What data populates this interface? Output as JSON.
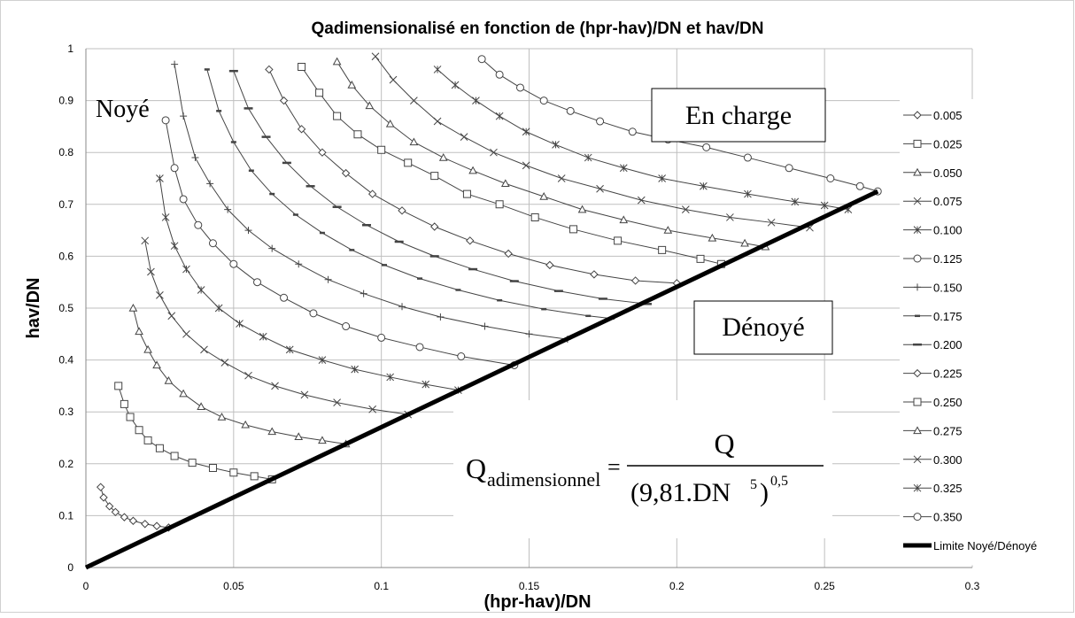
{
  "chart_data": {
    "type": "line",
    "title": "Qadimensionalisé en fonction de (hpr-hav)/DN et hav/DN",
    "xlabel": "(hpr-hav)/DN",
    "ylabel": "hav/DN",
    "xlim": [
      0,
      0.3
    ],
    "ylim": [
      0,
      1
    ],
    "xticks": [
      0,
      0.05,
      0.1,
      0.15,
      0.2,
      0.25,
      0.3
    ],
    "yticks": [
      0,
      0.1,
      0.2,
      0.3,
      0.4,
      0.5,
      0.6,
      0.7,
      0.8,
      0.9,
      1
    ],
    "grid": true,
    "legend": "right",
    "series": [
      {
        "name": "0.005",
        "color": "#444444",
        "marker": "diamond",
        "x": [
          0.005,
          0.006,
          0.008,
          0.01,
          0.013,
          0.016,
          0.02,
          0.024,
          0.028
        ],
        "values": [
          0.155,
          0.135,
          0.118,
          0.107,
          0.097,
          0.09,
          0.084,
          0.08,
          0.077
        ]
      },
      {
        "name": "0.025",
        "color": "#444444",
        "marker": "square",
        "x": [
          0.011,
          0.013,
          0.015,
          0.018,
          0.021,
          0.025,
          0.03,
          0.036,
          0.043,
          0.05,
          0.057,
          0.063
        ],
        "values": [
          0.35,
          0.315,
          0.29,
          0.265,
          0.245,
          0.23,
          0.215,
          0.202,
          0.192,
          0.183,
          0.176,
          0.17
        ]
      },
      {
        "name": "0.050",
        "color": "#444444",
        "marker": "triangle",
        "x": [
          0.016,
          0.018,
          0.021,
          0.024,
          0.028,
          0.033,
          0.039,
          0.046,
          0.054,
          0.063,
          0.072,
          0.08,
          0.088
        ],
        "values": [
          0.5,
          0.455,
          0.42,
          0.39,
          0.36,
          0.335,
          0.31,
          0.29,
          0.275,
          0.262,
          0.252,
          0.245,
          0.238
        ]
      },
      {
        "name": "0.075",
        "color": "#444444",
        "marker": "x",
        "x": [
          0.02,
          0.022,
          0.025,
          0.029,
          0.034,
          0.04,
          0.047,
          0.055,
          0.064,
          0.074,
          0.085,
          0.097,
          0.109
        ],
        "values": [
          0.63,
          0.57,
          0.525,
          0.485,
          0.45,
          0.42,
          0.395,
          0.37,
          0.35,
          0.333,
          0.318,
          0.305,
          0.295
        ]
      },
      {
        "name": "0.100",
        "color": "#444444",
        "marker": "star",
        "x": [
          0.025,
          0.027,
          0.03,
          0.034,
          0.039,
          0.045,
          0.052,
          0.06,
          0.069,
          0.08,
          0.091,
          0.103,
          0.115,
          0.126
        ],
        "values": [
          0.75,
          0.675,
          0.62,
          0.575,
          0.535,
          0.5,
          0.47,
          0.445,
          0.42,
          0.4,
          0.382,
          0.367,
          0.353,
          0.342
        ]
      },
      {
        "name": "0.125",
        "color": "#444444",
        "marker": "circle",
        "x": [
          0.027,
          0.03,
          0.033,
          0.038,
          0.043,
          0.05,
          0.058,
          0.067,
          0.077,
          0.088,
          0.1,
          0.113,
          0.127,
          0.145
        ],
        "values": [
          0.862,
          0.77,
          0.71,
          0.66,
          0.625,
          0.585,
          0.55,
          0.52,
          0.49,
          0.465,
          0.443,
          0.425,
          0.407,
          0.39
        ]
      },
      {
        "name": "0.150",
        "color": "#444444",
        "marker": "plus",
        "x": [
          0.03,
          0.033,
          0.037,
          0.042,
          0.048,
          0.055,
          0.063,
          0.072,
          0.082,
          0.094,
          0.107,
          0.12,
          0.135,
          0.15,
          0.163
        ],
        "values": [
          0.97,
          0.87,
          0.79,
          0.74,
          0.69,
          0.65,
          0.615,
          0.585,
          0.555,
          0.528,
          0.503,
          0.483,
          0.465,
          0.45,
          0.44
        ]
      },
      {
        "name": "0.175",
        "color": "#444444",
        "marker": "dash",
        "x": [
          0.041,
          0.045,
          0.05,
          0.056,
          0.063,
          0.071,
          0.08,
          0.09,
          0.101,
          0.113,
          0.126,
          0.14,
          0.155,
          0.17,
          0.178
        ],
        "values": [
          0.96,
          0.88,
          0.82,
          0.765,
          0.72,
          0.68,
          0.645,
          0.612,
          0.583,
          0.557,
          0.535,
          0.515,
          0.498,
          0.485,
          0.48
        ]
      },
      {
        "name": "0.200",
        "color": "#444444",
        "marker": "bar",
        "x": [
          0.05,
          0.055,
          0.061,
          0.068,
          0.076,
          0.085,
          0.095,
          0.106,
          0.118,
          0.131,
          0.145,
          0.16,
          0.175,
          0.19
        ],
        "values": [
          0.957,
          0.885,
          0.83,
          0.78,
          0.735,
          0.695,
          0.66,
          0.628,
          0.6,
          0.575,
          0.552,
          0.533,
          0.518,
          0.508
        ]
      },
      {
        "name": "0.225",
        "color": "#444444",
        "marker": "diamond",
        "x": [
          0.062,
          0.067,
          0.073,
          0.08,
          0.088,
          0.097,
          0.107,
          0.118,
          0.13,
          0.143,
          0.157,
          0.172,
          0.186,
          0.2
        ],
        "values": [
          0.96,
          0.9,
          0.845,
          0.8,
          0.76,
          0.72,
          0.688,
          0.657,
          0.63,
          0.605,
          0.583,
          0.565,
          0.553,
          0.548
        ]
      },
      {
        "name": "0.250",
        "color": "#444444",
        "marker": "square",
        "x": [
          0.073,
          0.079,
          0.085,
          0.092,
          0.1,
          0.109,
          0.118,
          0.129,
          0.14,
          0.152,
          0.165,
          0.18,
          0.195,
          0.208,
          0.215
        ],
        "values": [
          0.965,
          0.915,
          0.87,
          0.835,
          0.805,
          0.78,
          0.755,
          0.72,
          0.7,
          0.675,
          0.652,
          0.63,
          0.612,
          0.595,
          0.585
        ]
      },
      {
        "name": "0.275",
        "color": "#444444",
        "marker": "triangle",
        "x": [
          0.085,
          0.09,
          0.096,
          0.103,
          0.111,
          0.121,
          0.131,
          0.142,
          0.155,
          0.168,
          0.182,
          0.197,
          0.212,
          0.223,
          0.23
        ],
        "values": [
          0.975,
          0.93,
          0.89,
          0.855,
          0.82,
          0.79,
          0.765,
          0.74,
          0.715,
          0.69,
          0.67,
          0.65,
          0.635,
          0.625,
          0.618
        ]
      },
      {
        "name": "0.300",
        "color": "#444444",
        "marker": "x",
        "x": [
          0.098,
          0.104,
          0.111,
          0.119,
          0.128,
          0.138,
          0.149,
          0.161,
          0.174,
          0.188,
          0.203,
          0.218,
          0.232,
          0.245
        ],
        "values": [
          0.985,
          0.94,
          0.9,
          0.86,
          0.83,
          0.8,
          0.775,
          0.75,
          0.73,
          0.708,
          0.69,
          0.675,
          0.665,
          0.655
        ]
      },
      {
        "name": "0.325",
        "color": "#444444",
        "marker": "star",
        "x": [
          0.119,
          0.125,
          0.132,
          0.14,
          0.149,
          0.159,
          0.17,
          0.182,
          0.195,
          0.209,
          0.224,
          0.24,
          0.25,
          0.258
        ],
        "values": [
          0.96,
          0.93,
          0.9,
          0.87,
          0.84,
          0.815,
          0.79,
          0.77,
          0.75,
          0.735,
          0.72,
          0.705,
          0.698,
          0.69
        ]
      },
      {
        "name": "0.350",
        "color": "#444444",
        "marker": "circle",
        "x": [
          0.134,
          0.14,
          0.147,
          0.155,
          0.164,
          0.174,
          0.185,
          0.197,
          0.21,
          0.224,
          0.238,
          0.252,
          0.262,
          0.268
        ],
        "values": [
          0.98,
          0.95,
          0.925,
          0.9,
          0.88,
          0.86,
          0.84,
          0.825,
          0.81,
          0.79,
          0.77,
          0.75,
          0.735,
          0.725
        ]
      },
      {
        "name": "Limite Noyé/Dénoyé",
        "color": "#000000",
        "marker": "none",
        "width": 5,
        "x": [
          0,
          0.268
        ],
        "values": [
          0,
          0.725
        ]
      }
    ],
    "annotations": {
      "noye": "Noyé",
      "en_charge": "En charge",
      "denoye": "Dénoyé",
      "formula": {
        "lhs": "Q",
        "lhs_sub": "adimensionnel",
        "equals": "=",
        "numerator": "Q",
        "denominator": "(9,81.DN",
        "exponent_5": "5",
        "close": ")",
        "exponent": "0,5"
      }
    }
  }
}
